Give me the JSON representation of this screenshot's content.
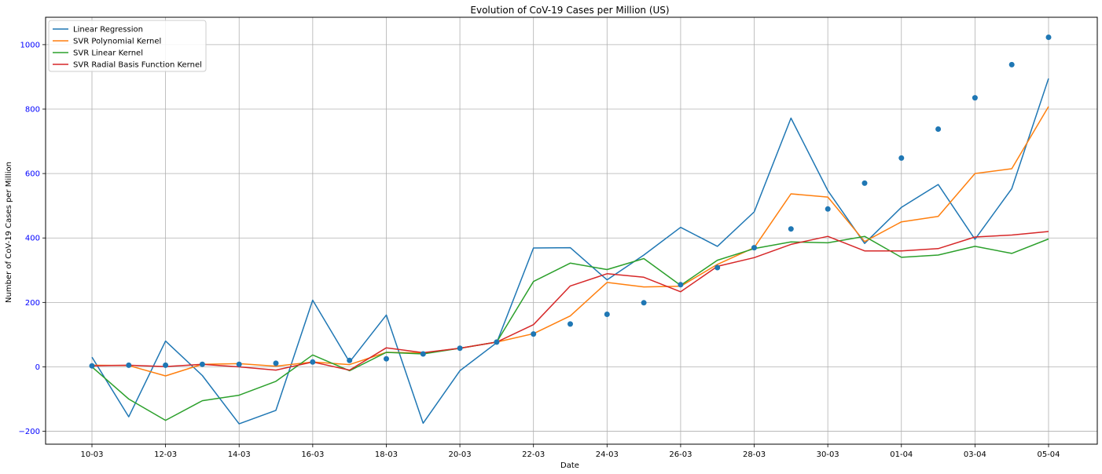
{
  "chart_data": {
    "type": "line",
    "title": "Evolution of CoV-19 Cases per Million (US)",
    "xlabel": "Date",
    "ylabel": "Number of CoV-19 Cases per Million",
    "x": [
      "10-03",
      "11-03",
      "12-03",
      "13-03",
      "14-03",
      "15-03",
      "16-03",
      "17-03",
      "18-03",
      "19-03",
      "20-03",
      "21-03",
      "22-03",
      "23-03",
      "24-03",
      "25-03",
      "26-03",
      "27-03",
      "28-03",
      "29-03",
      "30-03",
      "31-03",
      "01-04",
      "02-04",
      "03-04",
      "04-04",
      "05-04"
    ],
    "x_tick_labels": [
      "10-03",
      "12-03",
      "14-03",
      "16-03",
      "18-03",
      "20-03",
      "22-03",
      "24-03",
      "26-03",
      "28-03",
      "30-03",
      "01-04",
      "03-04",
      "05-04"
    ],
    "y_ticks": [
      -200,
      0,
      200,
      400,
      600,
      800,
      1000
    ],
    "ylim": [
      -240,
      1085
    ],
    "grid": true,
    "legend_position": "top-left",
    "y_tick_color": "#0000ff",
    "scatter": {
      "color": "#1f77b4",
      "values": [
        3,
        5,
        5,
        8,
        8,
        11,
        15,
        20,
        25,
        40,
        58,
        77,
        102,
        133,
        163,
        199,
        255,
        308,
        370,
        428,
        490,
        570,
        648,
        738,
        835,
        938,
        1023
      ]
    },
    "series": [
      {
        "name": "Linear Regression",
        "color": "#1f77b4",
        "values": [
          30,
          -155,
          80,
          -27,
          -177,
          -135,
          207,
          15,
          161,
          -175,
          -12,
          75,
          369,
          370,
          270,
          347,
          433,
          374,
          481,
          772,
          547,
          383,
          495,
          566,
          396,
          553,
          895
        ]
      },
      {
        "name": "SVR Polynomial Kernel",
        "color": "#ff7f0e",
        "values": [
          5,
          4,
          -28,
          8,
          10,
          2,
          15,
          7,
          45,
          43,
          58,
          77,
          103,
          158,
          262,
          248,
          250,
          318,
          370,
          537,
          527,
          389,
          450,
          467,
          600,
          615,
          808
        ]
      },
      {
        "name": "SVR Linear Kernel",
        "color": "#2ca02c",
        "values": [
          0,
          -100,
          -166,
          -105,
          -88,
          -45,
          37,
          -12,
          45,
          40,
          58,
          77,
          265,
          322,
          302,
          336,
          253,
          331,
          367,
          388,
          385,
          405,
          340,
          347,
          374,
          352,
          397
        ]
      },
      {
        "name": "SVR Radial Basis Function Kernel",
        "color": "#d62728",
        "values": [
          3,
          5,
          1,
          8,
          0,
          -10,
          15,
          -10,
          59,
          44,
          58,
          77,
          131,
          251,
          289,
          278,
          233,
          312,
          339,
          380,
          405,
          360,
          360,
          367,
          403,
          409,
          420
        ]
      }
    ]
  }
}
